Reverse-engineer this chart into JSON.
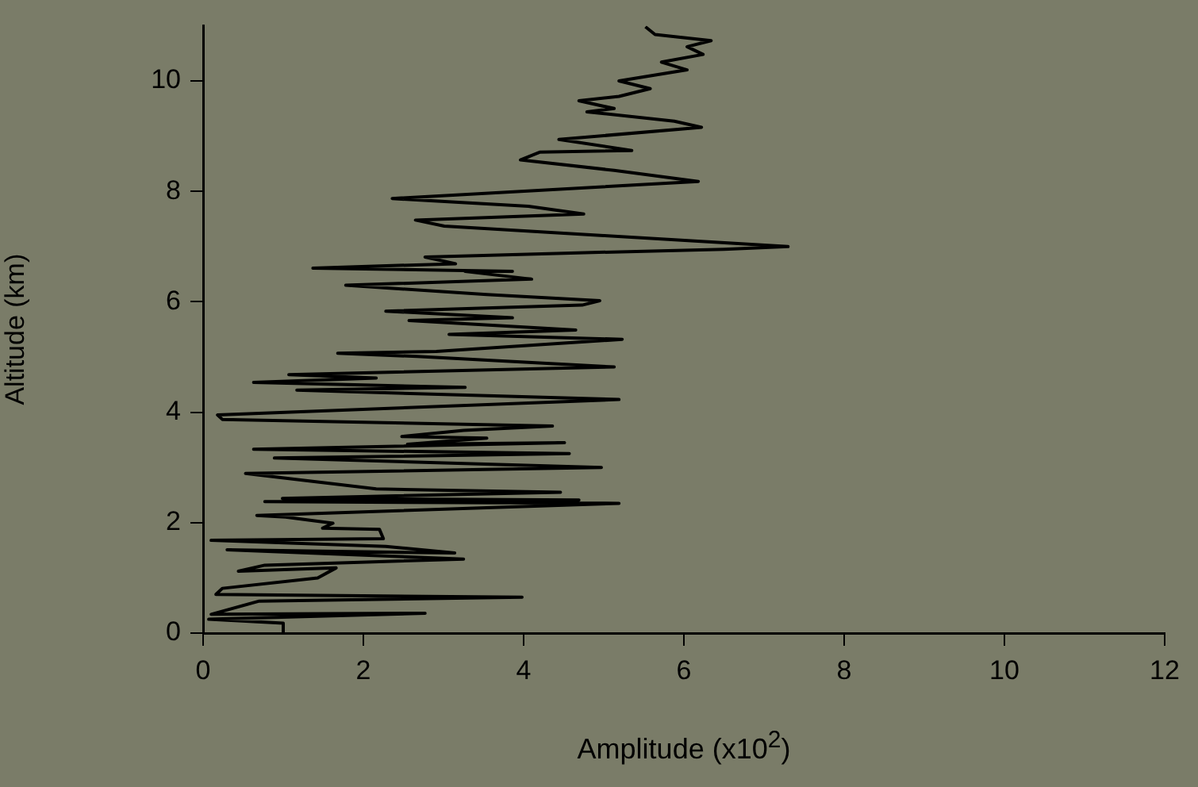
{
  "chart_data": {
    "type": "line",
    "xlabel": "Amplitude (x10$^{2}$)",
    "ylabel": "Altitude (km)",
    "xlim": [
      0,
      12
    ],
    "xticks": [
      0,
      2,
      4,
      6,
      8,
      10,
      12
    ],
    "ylim": [
      0,
      11
    ],
    "yticks": [
      0,
      2,
      4,
      6,
      8,
      10
    ],
    "series": [
      {
        "color": "#000000",
        "x": [
          1.0,
          1.0,
          0.07,
          2.77,
          0.1,
          0.7,
          3.98,
          0.16,
          0.24,
          1.43,
          1.66,
          0.44,
          0.77,
          3.25,
          0.3,
          3.14,
          2.28,
          0.1,
          2.25,
          2.2,
          1.49,
          1.62,
          1.03,
          0.67,
          5.19,
          0.77,
          4.69,
          0.99,
          4.46,
          2.16,
          0.53,
          4.97,
          0.89,
          4.57,
          0.63,
          4.51,
          2.55,
          3.54,
          2.48,
          3.25,
          4.36,
          0.24,
          0.18,
          5.19,
          1.17,
          3.27,
          0.63,
          2.16,
          1.07,
          5.13,
          2.67,
          1.68,
          2.91,
          5.23,
          3.07,
          4.65,
          2.57,
          3.86,
          2.28,
          4.73,
          4.95,
          3.54,
          1.78,
          4.1,
          3.27,
          3.86,
          1.37,
          3.15,
          2.77,
          4.5,
          6.5,
          7.3,
          5.0,
          3.01,
          2.65,
          4.75,
          4.06,
          2.36,
          6.18,
          5.13,
          3.96,
          4.2,
          5.35,
          4.44,
          6.22,
          5.88,
          4.79,
          5.13,
          4.69,
          5.19,
          5.58,
          5.19,
          6.04,
          5.72,
          6.24,
          6.04,
          6.34,
          5.64,
          5.52
        ],
        "values": [
          0,
          0.18,
          0.25,
          0.36,
          0.34,
          0.58,
          0.65,
          0.7,
          0.81,
          1.0,
          1.18,
          1.12,
          1.23,
          1.34,
          1.51,
          1.45,
          1.57,
          1.68,
          1.71,
          1.88,
          1.9,
          1.99,
          2.1,
          2.13,
          2.35,
          2.38,
          2.41,
          2.44,
          2.55,
          2.61,
          2.89,
          3.0,
          3.17,
          3.25,
          3.33,
          3.45,
          3.42,
          3.53,
          3.56,
          3.67,
          3.75,
          3.87,
          3.95,
          4.23,
          4.4,
          4.45,
          4.54,
          4.62,
          4.68,
          4.82,
          5.01,
          5.07,
          5.1,
          5.32,
          5.41,
          5.49,
          5.66,
          5.71,
          5.83,
          5.94,
          6.02,
          6.13,
          6.3,
          6.41,
          6.55,
          6.55,
          6.61,
          6.69,
          6.81,
          6.88,
          6.95,
          7.0,
          7.2,
          7.37,
          7.48,
          7.59,
          7.73,
          7.87,
          8.18,
          8.38,
          8.57,
          8.71,
          8.74,
          8.94,
          9.16,
          9.27,
          9.44,
          9.5,
          9.64,
          9.72,
          9.86,
          10.0,
          10.2,
          10.34,
          10.48,
          10.62,
          10.73,
          10.84,
          10.98
        ]
      }
    ]
  }
}
